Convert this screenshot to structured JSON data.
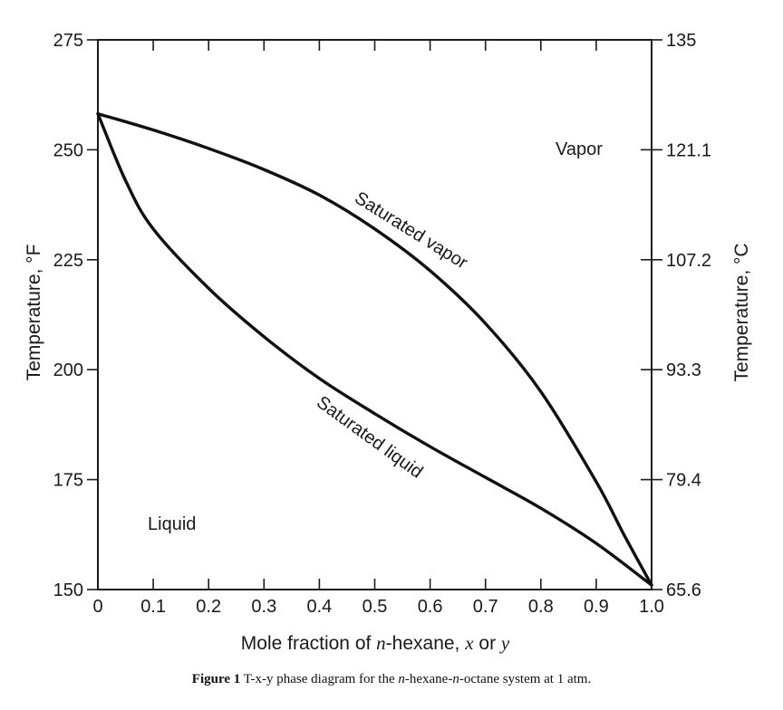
{
  "chart_data": {
    "type": "line",
    "title": "",
    "xlabel": {
      "prefix": "Mole fraction of ",
      "italic1": "n",
      "mid": "-hexane, ",
      "italic2": "x",
      "or": " or ",
      "italic3": "y"
    },
    "ylabel_left": "Temperature, °F",
    "ylabel_right": "Temperature, °C",
    "xlim": [
      0,
      1
    ],
    "ylim": [
      150,
      275
    ],
    "x_ticks": [
      "0",
      "0.1",
      "0.2",
      "0.3",
      "0.4",
      "0.5",
      "0.6",
      "0.7",
      "0.8",
      "0.9",
      "1.0"
    ],
    "y_ticks_left": [
      "150",
      "175",
      "200",
      "225",
      "250",
      "275"
    ],
    "y_ticks_right": [
      "65.6",
      "79.4",
      "93.3",
      "107.2",
      "121.1",
      "135"
    ],
    "series": [
      {
        "name": "Saturated vapor",
        "x": [
          0,
          0.1,
          0.2,
          0.3,
          0.4,
          0.5,
          0.6,
          0.7,
          0.8,
          0.9,
          0.95,
          1.0
        ],
        "y": [
          258.2,
          254.5,
          250.3,
          245.5,
          239.7,
          232.0,
          222.5,
          210.5,
          195.0,
          174.5,
          162.5,
          151.0
        ]
      },
      {
        "name": "Saturated liquid",
        "x": [
          0,
          0.05,
          0.1,
          0.2,
          0.3,
          0.4,
          0.5,
          0.6,
          0.7,
          0.8,
          0.9,
          1.0
        ],
        "y": [
          258.2,
          243.0,
          232.0,
          218.5,
          207.5,
          198.0,
          190.0,
          182.5,
          175.5,
          168.5,
          160.5,
          151.0
        ]
      }
    ],
    "annotations": {
      "vapor_region": "Vapor",
      "liquid_region": "Liquid",
      "vapor_curve": "Saturated vapor",
      "liquid_curve": "Saturated liquid"
    }
  },
  "caption": {
    "label": "Figure 1",
    "text_before": " T-x-y phase diagram for the ",
    "italic1": "n",
    "text_mid": "-hexane-",
    "italic2": "n",
    "text_after": "-octane system at 1 atm."
  }
}
